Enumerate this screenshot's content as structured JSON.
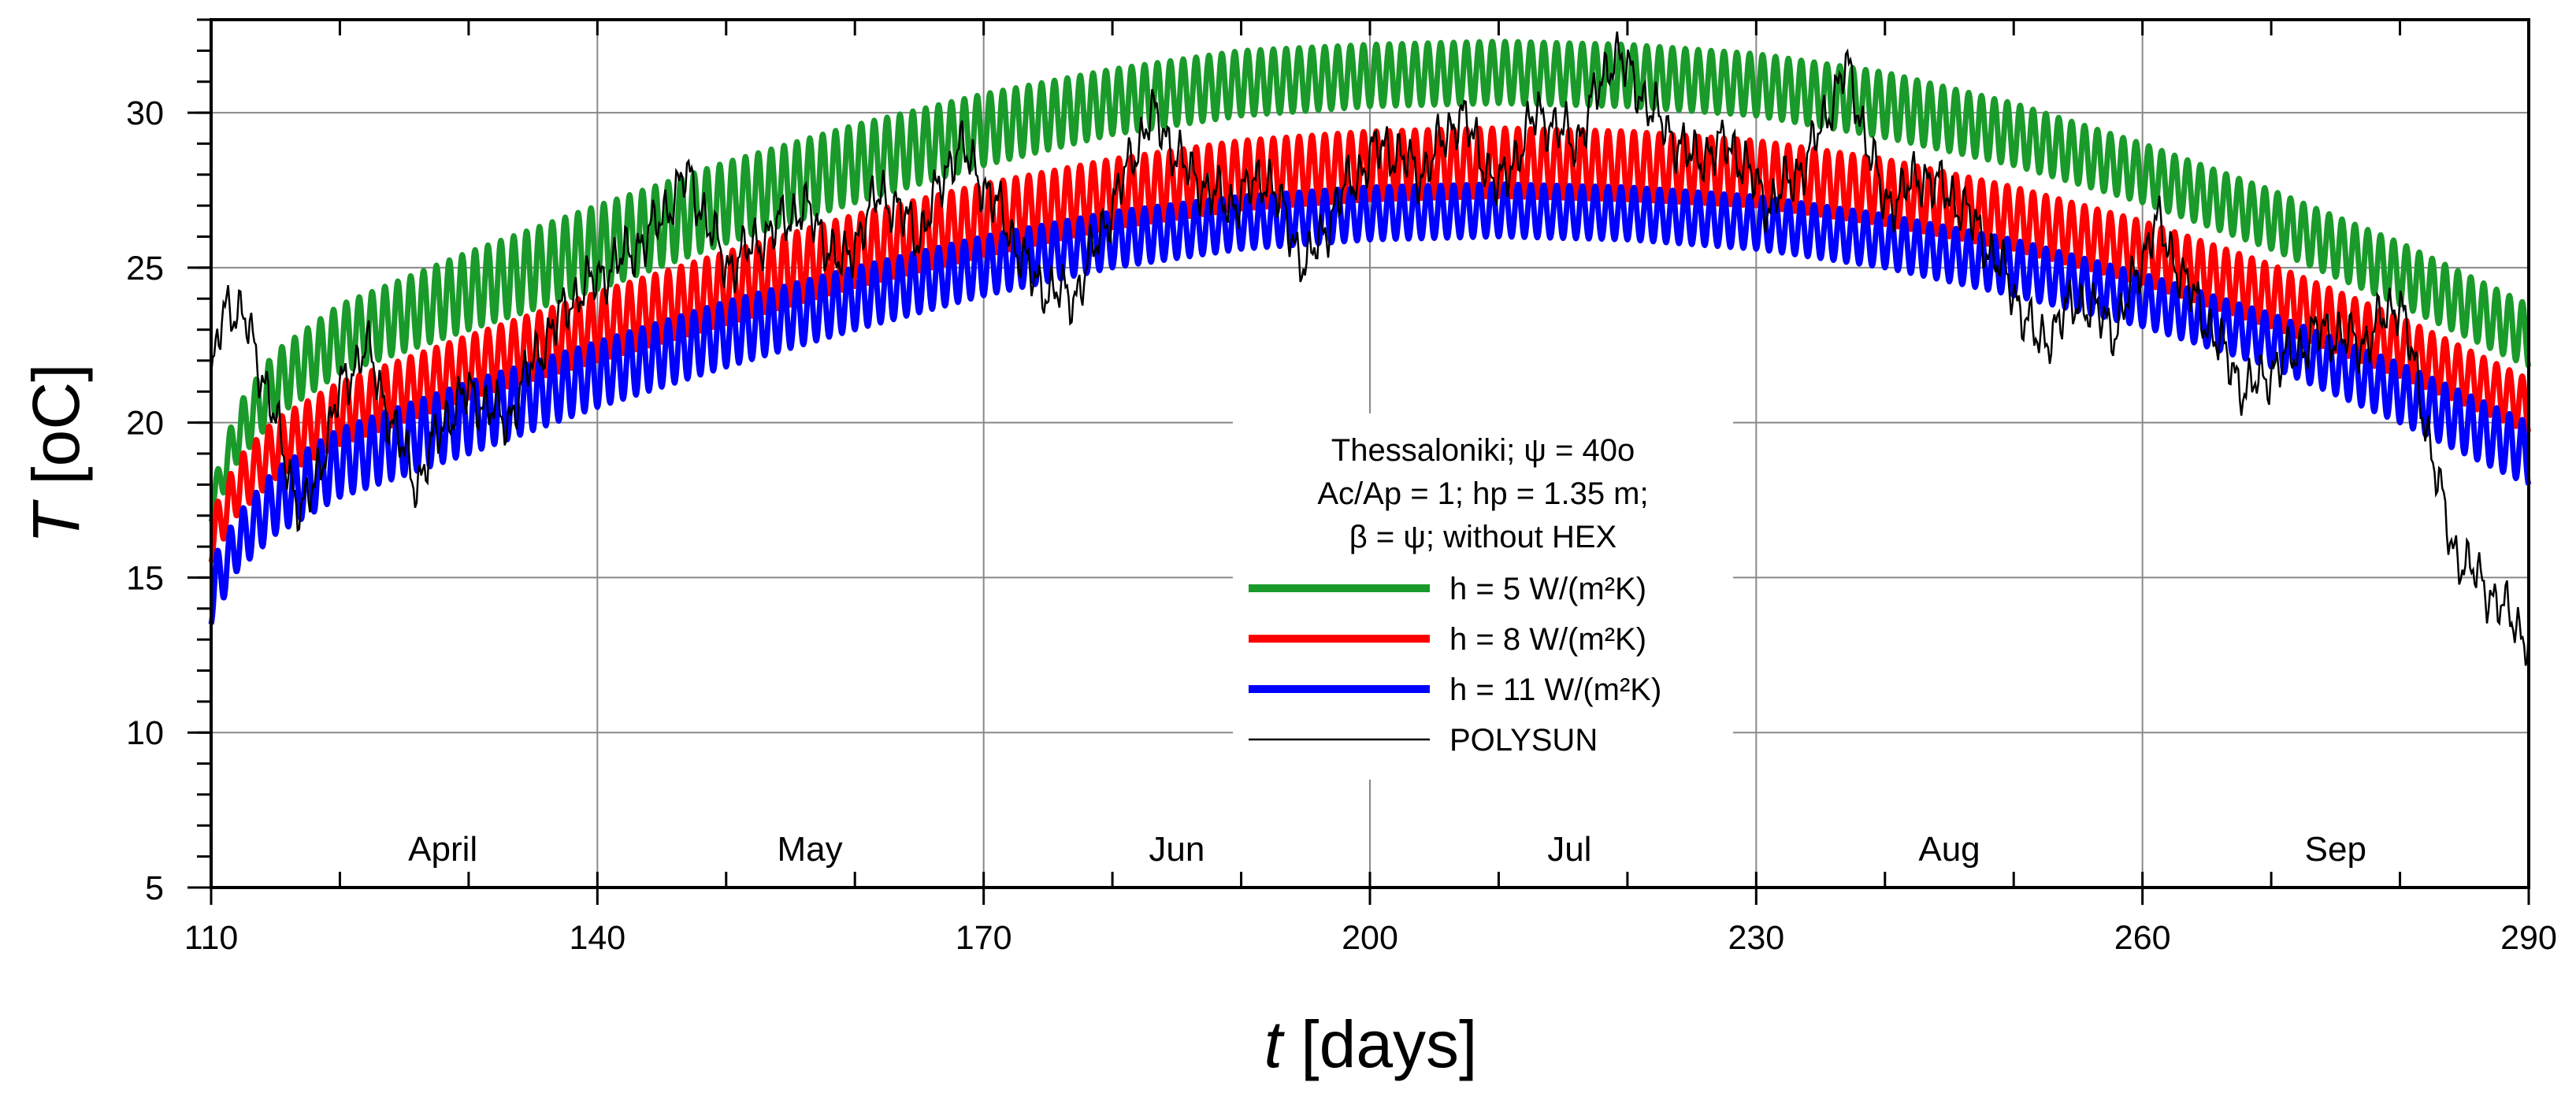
{
  "chart_data": {
    "type": "line",
    "xlabel": {
      "symbol": "t",
      "unit": "[days]"
    },
    "ylabel": {
      "symbol": "T",
      "unit": "[oC]"
    },
    "xlim": [
      110,
      290
    ],
    "ylim": [
      5,
      33
    ],
    "x_ticks": [
      110,
      140,
      170,
      200,
      230,
      260,
      290
    ],
    "y_ticks": [
      5,
      10,
      15,
      20,
      25,
      30
    ],
    "grid": true,
    "month_labels": [
      {
        "label": "April",
        "x": 128
      },
      {
        "label": "May",
        "x": 156.5
      },
      {
        "label": "Jun",
        "x": 185
      },
      {
        "label": "Jul",
        "x": 215.5
      },
      {
        "label": "Aug",
        "x": 245
      },
      {
        "label": "Sep",
        "x": 275
      }
    ],
    "annotation": [
      "Thessaloniki; ψ = 40o",
      "Ac/Ap = 1; hp = 1.35 m;",
      "β = ψ;  without HEX"
    ],
    "legend_position": "center-bottom",
    "series": [
      {
        "name": "h = 5  W/(m²K)",
        "color": "#1a9a2a",
        "style": "daily-oscillating band",
        "x": [
          110,
          112,
          115,
          120,
          130,
          140,
          150,
          160,
          170,
          180,
          190,
          200,
          210,
          220,
          230,
          240,
          250,
          260,
          270,
          280,
          290
        ],
        "min": [
          16.8,
          18.7,
          20.2,
          21.6,
          23.0,
          24.3,
          25.8,
          27.1,
          28.3,
          29.3,
          29.9,
          30.2,
          30.3,
          30.2,
          29.9,
          29.2,
          28.3,
          27.1,
          25.6,
          23.8,
          21.8
        ],
        "max": [
          17.8,
          20.5,
          22.3,
          23.8,
          25.5,
          27.0,
          28.4,
          29.6,
          30.6,
          31.4,
          32.0,
          32.2,
          32.3,
          32.2,
          31.9,
          31.3,
          30.3,
          29.0,
          27.5,
          25.8,
          23.8
        ]
      },
      {
        "name": "h = 8  W/(m²K)",
        "color": "#ff0000",
        "style": "daily-oscillating band",
        "x": [
          110,
          112,
          115,
          120,
          130,
          140,
          150,
          160,
          170,
          180,
          190,
          200,
          210,
          220,
          230,
          240,
          250,
          260,
          270,
          280,
          290
        ],
        "min": [
          15.5,
          17.0,
          18.2,
          19.3,
          20.8,
          22.0,
          23.2,
          24.4,
          25.4,
          26.3,
          26.9,
          27.2,
          27.3,
          27.2,
          27.0,
          26.4,
          25.6,
          24.5,
          23.1,
          21.5,
          19.7
        ],
        "max": [
          17.0,
          18.8,
          20.1,
          21.3,
          22.8,
          24.2,
          25.5,
          26.7,
          27.7,
          28.5,
          29.1,
          29.4,
          29.5,
          29.4,
          29.1,
          28.5,
          27.6,
          26.5,
          25.1,
          23.4,
          21.4
        ]
      },
      {
        "name": "h = 11  W/(m²K)",
        "color": "#0000ff",
        "style": "daily-oscillating band",
        "x": [
          110,
          112,
          115,
          120,
          130,
          140,
          150,
          160,
          170,
          180,
          190,
          200,
          210,
          220,
          230,
          240,
          250,
          260,
          270,
          280,
          290
        ],
        "min": [
          13.5,
          15.2,
          16.4,
          17.6,
          19.0,
          20.5,
          21.8,
          23.0,
          24.1,
          25.0,
          25.6,
          25.9,
          26.0,
          25.9,
          25.6,
          25.0,
          24.1,
          23.1,
          21.8,
          20.0,
          18.0
        ],
        "max": [
          15.5,
          17.0,
          18.5,
          19.8,
          21.3,
          22.6,
          23.9,
          25.0,
          26.0,
          26.8,
          27.3,
          27.6,
          27.7,
          27.6,
          27.3,
          26.7,
          25.9,
          24.8,
          23.5,
          21.9,
          20.0
        ]
      },
      {
        "name": "POLYSUN",
        "color": "#000000",
        "style": "thin noisy line",
        "x": [
          110,
          111,
          113,
          115,
          117,
          118,
          120,
          122,
          124,
          126,
          128,
          130,
          133,
          135,
          138,
          141,
          144,
          147,
          150,
          153,
          156,
          159,
          162,
          165,
          168,
          171,
          174,
          177,
          180,
          183,
          186,
          189,
          192,
          195,
          198,
          201,
          204,
          207,
          210,
          213,
          216,
          219,
          222,
          225,
          228,
          231,
          234,
          237,
          240,
          243,
          246,
          249,
          252,
          255,
          258,
          261,
          264,
          266,
          268,
          271,
          274,
          277,
          280,
          282,
          284,
          286,
          288,
          290
        ],
        "y": [
          21,
          24,
          23,
          20,
          17,
          18,
          21,
          22.5,
          20,
          18,
          20,
          21,
          20,
          22,
          24,
          25,
          26,
          28,
          25,
          26,
          27,
          25,
          27.5,
          26,
          29,
          27,
          24.5,
          24,
          27,
          30,
          28,
          27,
          28,
          25,
          27.5,
          29,
          28,
          30,
          27.5,
          30,
          29,
          32,
          30,
          28.5,
          29,
          27,
          28.5,
          31.5,
          27,
          28,
          27,
          25,
          22.5,
          24,
          23,
          26.5,
          24,
          22.5,
          21,
          22,
          23,
          22.5,
          24,
          20,
          16,
          15,
          14,
          13
        ]
      }
    ]
  }
}
